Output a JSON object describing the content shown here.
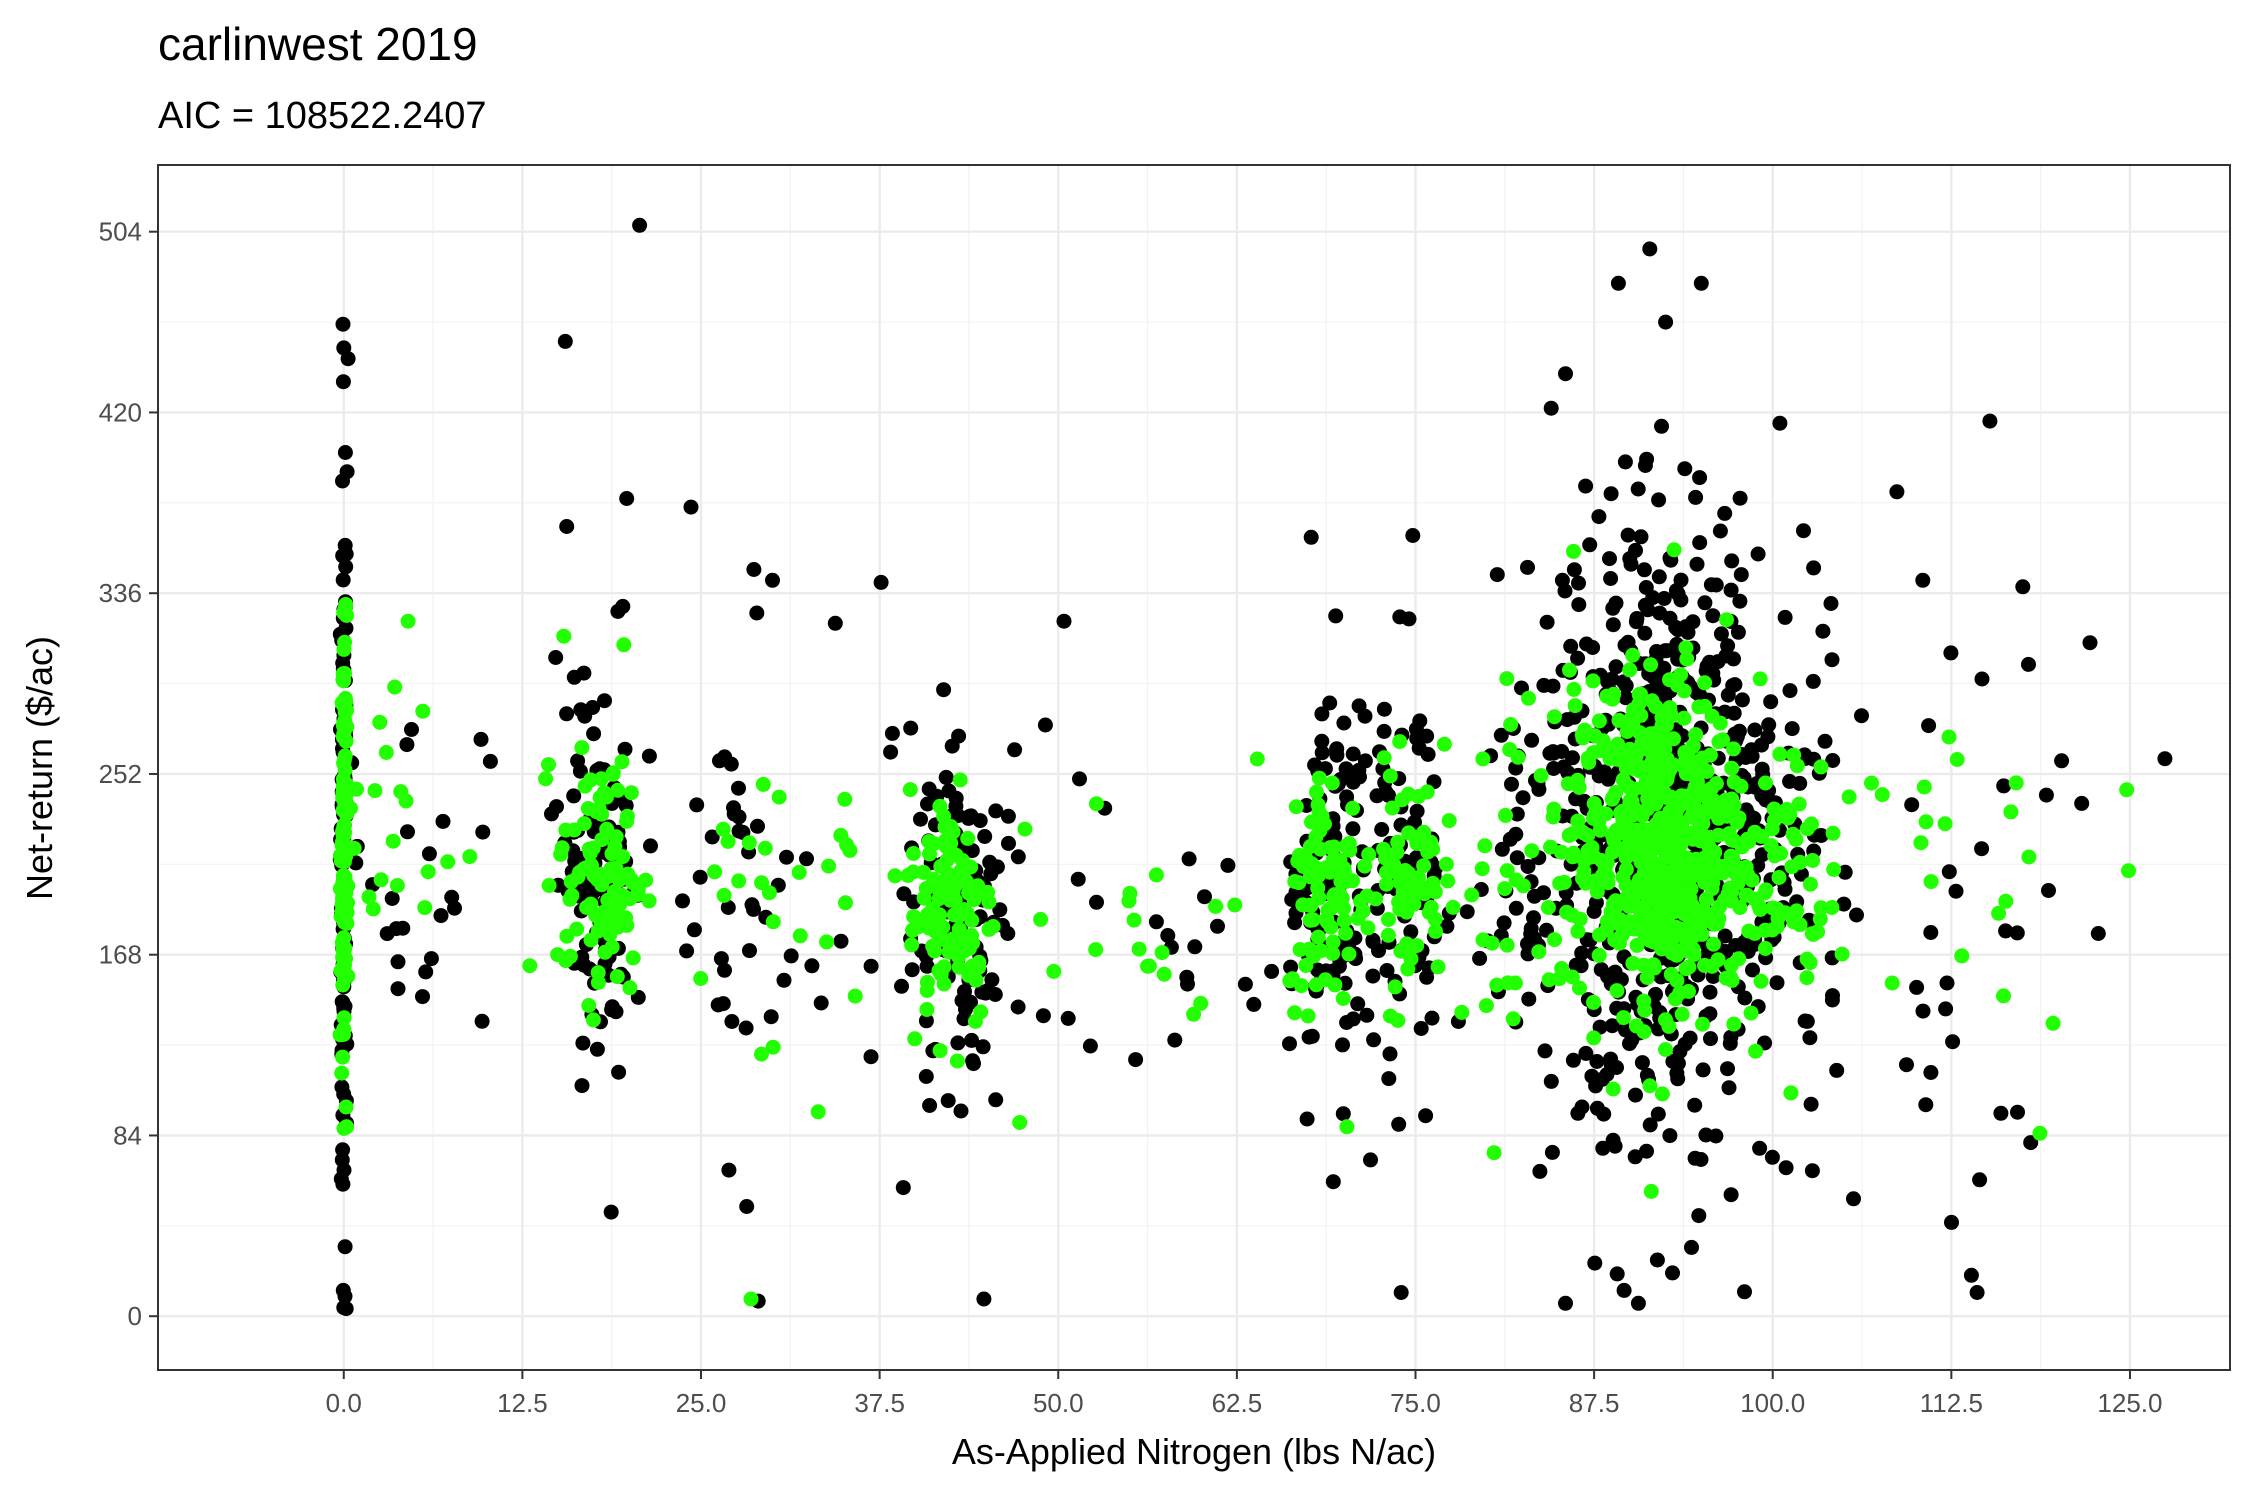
{
  "chart_data": {
    "type": "scatter",
    "title": "carlinwest 2019",
    "subtitle": "AIC = 108522.2407",
    "xlabel": "As-Applied Nitrogen (lbs N/ac)",
    "ylabel": "Net-return ($/ac)",
    "xlim": [
      -13,
      132
    ],
    "ylim": [
      -25,
      535
    ],
    "x_ticks": [
      0,
      12.5,
      25,
      37.5,
      50,
      62.5,
      75,
      87.5,
      100,
      112.5,
      125
    ],
    "x_tick_labels": [
      "0.0",
      "12.5",
      "25.0",
      "37.5",
      "50.0",
      "62.5",
      "75.0",
      "87.5",
      "100.0",
      "112.5",
      "125.0"
    ],
    "y_ticks": [
      0,
      84,
      168,
      252,
      336,
      420,
      504
    ],
    "y_tick_labels": [
      "0",
      "84",
      "168",
      "252",
      "336",
      "420",
      "504"
    ],
    "grid": true,
    "legend": "none",
    "colors": {
      "observed": "#000000",
      "predicted": "#22ff00",
      "panel_border": "#333333",
      "grid_major": "#ebebeb"
    },
    "series": [
      {
        "color": "#000000",
        "clusters": [
          {
            "x": 0,
            "xsd": 0.1,
            "y": 210,
            "ysd": 95,
            "n": 130
          },
          {
            "x": 18,
            "xsd": 1.5,
            "y": 205,
            "ysd": 45,
            "n": 110
          },
          {
            "x": 43,
            "xsd": 1.8,
            "y": 190,
            "ysd": 45,
            "n": 120
          },
          {
            "x": 69,
            "xsd": 1.6,
            "y": 205,
            "ysd": 50,
            "n": 110
          },
          {
            "x": 74.5,
            "xsd": 1.2,
            "y": 205,
            "ysd": 50,
            "n": 80
          },
          {
            "x": 92,
            "xsd": 3.5,
            "y": 230,
            "ysd": 70,
            "n": 600
          },
          {
            "x": 84,
            "xsd": 3,
            "y": 210,
            "ysd": 60,
            "n": 70
          },
          {
            "x": 100,
            "xsd": 2.5,
            "y": 205,
            "ysd": 55,
            "n": 90
          },
          {
            "x": 28,
            "xsd": 3,
            "y": 185,
            "ysd": 55,
            "n": 40
          },
          {
            "x": 58,
            "xsd": 6,
            "y": 175,
            "ysd": 40,
            "n": 30
          },
          {
            "x": 112,
            "xsd": 7,
            "y": 200,
            "ysd": 70,
            "n": 45
          },
          {
            "x": 5,
            "xsd": 2.5,
            "y": 210,
            "ysd": 40,
            "n": 25
          }
        ],
        "points": [
          [
            20.7,
            507
          ],
          [
            15.5,
            453
          ],
          [
            0,
            450
          ],
          [
            0.3,
            445
          ],
          [
            15.6,
            367
          ],
          [
            19.8,
            380
          ],
          [
            24.3,
            376
          ],
          [
            28.7,
            347
          ],
          [
            30,
            342
          ],
          [
            37.6,
            341
          ],
          [
            34.4,
            322
          ],
          [
            50.4,
            323
          ],
          [
            67.7,
            362
          ],
          [
            73.9,
            325
          ],
          [
            91.4,
            496
          ],
          [
            89.2,
            480
          ],
          [
            95,
            480
          ],
          [
            92.5,
            462
          ],
          [
            85.5,
            438
          ],
          [
            84.5,
            422
          ],
          [
            115.2,
            416
          ],
          [
            110.5,
            342
          ],
          [
            117.5,
            339
          ],
          [
            122.2,
            313
          ],
          [
            100.5,
            415
          ],
          [
            90.6,
            6
          ],
          [
            89.6,
            12
          ],
          [
            85.5,
            6
          ],
          [
            44.8,
            8
          ],
          [
            29,
            7
          ],
          [
            28.2,
            51
          ],
          [
            0,
            4
          ],
          [
            113.9,
            19
          ],
          [
            114.3,
            11
          ],
          [
            74,
            11
          ]
        ]
      },
      {
        "color": "#22ff00",
        "clusters": [
          {
            "x": 0,
            "xsd": 0.1,
            "y": 215,
            "ysd": 55,
            "n": 110
          },
          {
            "x": 18,
            "xsd": 1.5,
            "y": 205,
            "ysd": 28,
            "n": 100
          },
          {
            "x": 42.5,
            "xsd": 1.5,
            "y": 190,
            "ysd": 28,
            "n": 110
          },
          {
            "x": 69,
            "xsd": 1.5,
            "y": 200,
            "ysd": 28,
            "n": 90
          },
          {
            "x": 74.5,
            "xsd": 1.2,
            "y": 205,
            "ysd": 25,
            "n": 60
          },
          {
            "x": 92,
            "xsd": 3,
            "y": 220,
            "ysd": 38,
            "n": 550
          },
          {
            "x": 83,
            "xsd": 3,
            "y": 210,
            "ysd": 40,
            "n": 40
          },
          {
            "x": 100,
            "xsd": 2,
            "y": 210,
            "ysd": 35,
            "n": 60
          },
          {
            "x": 110,
            "xsd": 6,
            "y": 210,
            "ysd": 40,
            "n": 25
          },
          {
            "x": 30,
            "xsd": 3.5,
            "y": 200,
            "ysd": 40,
            "n": 25
          },
          {
            "x": 55,
            "xsd": 5,
            "y": 185,
            "ysd": 30,
            "n": 20
          },
          {
            "x": 4,
            "xsd": 2,
            "y": 220,
            "ysd": 35,
            "n": 20
          }
        ],
        "points": [
          [
            4.5,
            323
          ],
          [
            15.4,
            316
          ],
          [
            19.6,
            312
          ],
          [
            28.5,
            8
          ],
          [
            33.2,
            95
          ],
          [
            47.3,
            90
          ],
          [
            70.2,
            88
          ],
          [
            80.5,
            76
          ],
          [
            118.7,
            85
          ],
          [
            91.5,
            58
          ],
          [
            0,
            327
          ],
          [
            0.2,
            88
          ]
        ]
      }
    ]
  }
}
